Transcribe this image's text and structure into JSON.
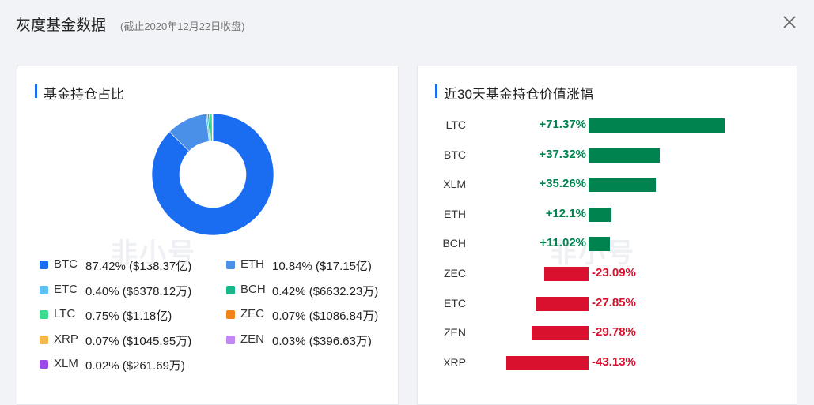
{
  "header": {
    "title": "灰度基金数据",
    "subtitle": "(截止2020年12月22日收盘)"
  },
  "left_panel": {
    "title": "基金持仓占比",
    "legend": [
      {
        "name": "BTC",
        "text": "87.42% ($138.37亿)",
        "color": "#1a6cf0"
      },
      {
        "name": "ETH",
        "text": "10.84% ($17.15亿)",
        "color": "#4a8fe8"
      },
      {
        "name": "ETC",
        "text": "0.40% ($6378.12万)",
        "color": "#5cc2f2"
      },
      {
        "name": "BCH",
        "text": "0.42% ($6632.23万)",
        "color": "#16b98a"
      },
      {
        "name": "LTC",
        "text": "0.75% ($1.18亿)",
        "color": "#3ed98a"
      },
      {
        "name": "ZEC",
        "text": "0.07% ($1086.84万)",
        "color": "#f0841c"
      },
      {
        "name": "XRP",
        "text": "0.07% ($1045.95万)",
        "color": "#f5b84a"
      },
      {
        "name": "ZEN",
        "text": "0.03% ($396.63万)",
        "color": "#c088f0"
      },
      {
        "name": "XLM",
        "text": "0.02% ($261.69万)",
        "color": "#9a4ae6"
      }
    ]
  },
  "right_panel": {
    "title": "近30天基金持仓价值涨幅"
  },
  "watermark": "非小号",
  "colors": {
    "up": "#00834e",
    "down": "#d9112f",
    "accent": "#1a6cf0"
  },
  "chart_data": [
    {
      "type": "pie",
      "categories": [
        "BTC",
        "ETH",
        "ETC",
        "BCH",
        "LTC",
        "ZEC",
        "XRP",
        "ZEN",
        "XLM"
      ],
      "values": [
        87.42,
        10.84,
        0.4,
        0.42,
        0.75,
        0.07,
        0.07,
        0.03,
        0.02
      ],
      "title": "基金持仓占比"
    },
    {
      "type": "bar",
      "orientation": "horizontal",
      "categories": [
        "LTC",
        "BTC",
        "XLM",
        "ETH",
        "BCH",
        "ZEC",
        "ETC",
        "ZEN",
        "XRP"
      ],
      "values": [
        71.37,
        37.32,
        35.26,
        12.1,
        11.02,
        -23.09,
        -27.85,
        -29.78,
        -43.13
      ],
      "labels": [
        "+71.37%",
        "+37.32%",
        "+35.26%",
        "+12.1%",
        "+11.02%",
        "-23.09%",
        "-27.85%",
        "-29.78%",
        "-43.13%"
      ],
      "title": "近30天基金持仓价值涨幅"
    }
  ]
}
